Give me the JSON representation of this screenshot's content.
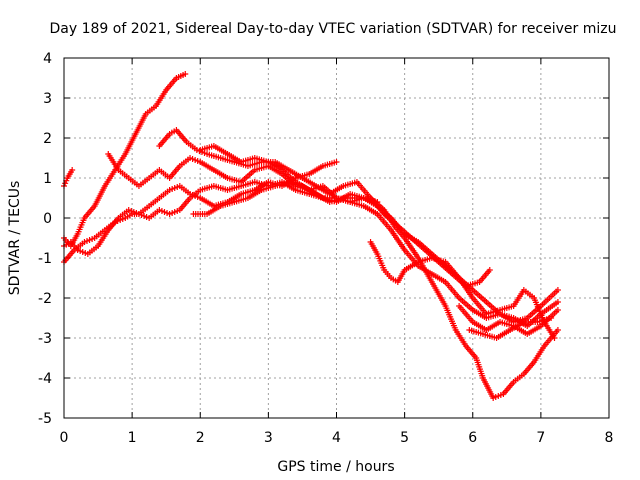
{
  "chart_data": {
    "type": "scatter",
    "title": "Day 189 of 2021, Sidereal Day-to-day VTEC variation (SDTVAR) for receiver mizu",
    "xlabel": "GPS time / hours",
    "ylabel": "SDTVAR / TECUs",
    "xlim": [
      0,
      8
    ],
    "ylim": [
      -5,
      4
    ],
    "xticks": [
      0,
      1,
      2,
      3,
      4,
      5,
      6,
      7,
      8
    ],
    "yticks": [
      -5,
      -4,
      -3,
      -2,
      -1,
      0,
      1,
      2,
      3,
      4
    ],
    "grid": true,
    "marker": "+",
    "color": "#ff0000",
    "series": [
      {
        "points": [
          [
            0,
            -0.5
          ],
          [
            0.1,
            -0.7
          ],
          [
            0.2,
            -0.4
          ],
          [
            0.3,
            0.0
          ],
          [
            0.45,
            0.3
          ],
          [
            0.6,
            0.8
          ],
          [
            0.75,
            1.2
          ],
          [
            0.9,
            1.6
          ],
          [
            1.05,
            2.1
          ],
          [
            1.2,
            2.6
          ],
          [
            1.35,
            2.8
          ],
          [
            1.5,
            3.2
          ],
          [
            1.65,
            3.5
          ],
          [
            1.78,
            3.6
          ]
        ]
      },
      {
        "points": [
          [
            0.0,
            0.8
          ],
          [
            0.05,
            1.0
          ],
          [
            0.12,
            1.2
          ]
        ]
      },
      {
        "points": [
          [
            0.0,
            -1.1
          ],
          [
            0.15,
            -0.8
          ],
          [
            0.3,
            -0.6
          ],
          [
            0.45,
            -0.5
          ],
          [
            0.6,
            -0.3
          ],
          [
            0.75,
            -0.1
          ],
          [
            0.9,
            0.0
          ],
          [
            1.0,
            0.1
          ],
          [
            1.1,
            0.1
          ],
          [
            1.25,
            0.0
          ],
          [
            1.4,
            0.2
          ],
          [
            1.55,
            0.1
          ],
          [
            1.7,
            0.2
          ],
          [
            1.85,
            0.5
          ],
          [
            2.0,
            0.7
          ],
          [
            2.2,
            0.8
          ],
          [
            2.4,
            0.7
          ],
          [
            2.6,
            0.8
          ],
          [
            2.8,
            0.9
          ],
          [
            3.0,
            0.8
          ],
          [
            3.2,
            0.9
          ],
          [
            3.4,
            0.7
          ],
          [
            3.6,
            0.6
          ],
          [
            3.8,
            0.5
          ],
          [
            4.0,
            0.5
          ],
          [
            4.2,
            0.4
          ],
          [
            4.4,
            0.5
          ],
          [
            4.6,
            0.4
          ]
        ]
      },
      {
        "points": [
          [
            0.0,
            -0.7
          ],
          [
            0.1,
            -0.6
          ],
          [
            0.2,
            -0.8
          ],
          [
            0.35,
            -0.9
          ],
          [
            0.5,
            -0.7
          ],
          [
            0.65,
            -0.3
          ],
          [
            0.8,
            0.0
          ],
          [
            0.95,
            0.2
          ],
          [
            1.1,
            0.1
          ],
          [
            1.25,
            0.3
          ],
          [
            1.4,
            0.5
          ],
          [
            1.55,
            0.7
          ],
          [
            1.7,
            0.8
          ],
          [
            1.85,
            0.6
          ],
          [
            2.0,
            0.5
          ],
          [
            2.2,
            0.3
          ],
          [
            2.4,
            0.4
          ],
          [
            2.6,
            0.6
          ],
          [
            2.8,
            0.7
          ],
          [
            3.0,
            0.9
          ],
          [
            3.2,
            0.8
          ],
          [
            3.4,
            1.0
          ],
          [
            3.6,
            1.1
          ],
          [
            3.8,
            1.3
          ],
          [
            4.0,
            1.4
          ]
        ]
      },
      {
        "points": [
          [
            0.65,
            1.6
          ],
          [
            0.8,
            1.2
          ],
          [
            0.95,
            1.0
          ],
          [
            1.1,
            0.8
          ],
          [
            1.25,
            1.0
          ],
          [
            1.4,
            1.2
          ],
          [
            1.55,
            1.0
          ],
          [
            1.7,
            1.3
          ],
          [
            1.85,
            1.5
          ],
          [
            2.0,
            1.4
          ],
          [
            2.2,
            1.2
          ],
          [
            2.4,
            1.0
          ],
          [
            2.6,
            0.9
          ],
          [
            2.8,
            1.2
          ],
          [
            3.0,
            1.3
          ],
          [
            3.2,
            1.1
          ],
          [
            3.4,
            0.8
          ],
          [
            3.6,
            0.7
          ],
          [
            3.8,
            0.5
          ],
          [
            4.0,
            0.4
          ],
          [
            4.2,
            0.6
          ],
          [
            4.4,
            0.5
          ],
          [
            4.6,
            0.3
          ],
          [
            4.8,
            0.0
          ],
          [
            5.0,
            -0.4
          ],
          [
            5.2,
            -0.6
          ],
          [
            5.4,
            -0.9
          ],
          [
            5.6,
            -1.2
          ],
          [
            5.8,
            -1.5
          ],
          [
            6.0,
            -1.8
          ],
          [
            6.2,
            -2.1
          ],
          [
            6.4,
            -2.4
          ],
          [
            6.6,
            -2.6
          ],
          [
            6.8,
            -2.5
          ],
          [
            7.0,
            -2.2
          ],
          [
            7.25,
            -1.8
          ]
        ]
      },
      {
        "points": [
          [
            1.4,
            1.8
          ],
          [
            1.55,
            2.1
          ],
          [
            1.65,
            2.2
          ],
          [
            1.8,
            1.9
          ],
          [
            1.95,
            1.7
          ],
          [
            2.1,
            1.6
          ],
          [
            2.3,
            1.5
          ],
          [
            2.5,
            1.4
          ],
          [
            2.7,
            1.3
          ],
          [
            2.9,
            1.4
          ],
          [
            3.1,
            1.4
          ],
          [
            3.3,
            1.2
          ],
          [
            3.5,
            1.0
          ],
          [
            3.7,
            0.8
          ],
          [
            3.9,
            0.6
          ],
          [
            4.1,
            0.8
          ],
          [
            4.3,
            0.9
          ],
          [
            4.5,
            0.5
          ],
          [
            4.7,
            0.1
          ],
          [
            4.9,
            -0.2
          ],
          [
            5.1,
            -0.5
          ],
          [
            5.3,
            -0.8
          ],
          [
            5.5,
            -1.1
          ],
          [
            5.7,
            -1.4
          ],
          [
            5.9,
            -1.7
          ],
          [
            6.1,
            -1.6
          ],
          [
            6.25,
            -1.3
          ]
        ]
      },
      {
        "points": [
          [
            1.9,
            0.1
          ],
          [
            2.1,
            0.1
          ],
          [
            2.3,
            0.3
          ],
          [
            2.5,
            0.4
          ],
          [
            2.7,
            0.5
          ],
          [
            2.9,
            0.7
          ],
          [
            3.1,
            0.8
          ],
          [
            3.3,
            0.9
          ],
          [
            3.5,
            0.8
          ],
          [
            3.7,
            0.6
          ],
          [
            3.9,
            0.4
          ],
          [
            4.1,
            0.5
          ],
          [
            4.3,
            0.5
          ],
          [
            4.5,
            0.5
          ],
          [
            4.7,
            0.2
          ],
          [
            4.85,
            -0.2
          ],
          [
            5.0,
            -0.5
          ],
          [
            5.2,
            -1.0
          ],
          [
            5.4,
            -1.6
          ],
          [
            5.6,
            -2.2
          ],
          [
            5.75,
            -2.8
          ],
          [
            5.9,
            -3.2
          ],
          [
            6.05,
            -3.5
          ],
          [
            6.15,
            -4.0
          ],
          [
            6.3,
            -4.5
          ],
          [
            6.45,
            -4.4
          ],
          [
            6.6,
            -4.1
          ],
          [
            6.75,
            -3.9
          ],
          [
            6.9,
            -3.6
          ],
          [
            7.05,
            -3.2
          ],
          [
            7.25,
            -2.8
          ]
        ]
      },
      {
        "points": [
          [
            2.0,
            1.7
          ],
          [
            2.2,
            1.8
          ],
          [
            2.4,
            1.6
          ],
          [
            2.6,
            1.4
          ],
          [
            2.8,
            1.5
          ],
          [
            3.0,
            1.4
          ],
          [
            3.2,
            1.2
          ],
          [
            3.4,
            0.9
          ],
          [
            3.6,
            0.7
          ],
          [
            3.8,
            0.8
          ],
          [
            4.0,
            0.5
          ],
          [
            4.2,
            0.4
          ],
          [
            4.4,
            0.3
          ],
          [
            4.6,
            0.1
          ],
          [
            4.8,
            -0.3
          ],
          [
            5.0,
            -0.8
          ],
          [
            5.2,
            -1.2
          ],
          [
            5.4,
            -1.4
          ],
          [
            5.6,
            -1.6
          ],
          [
            5.8,
            -2.0
          ],
          [
            6.0,
            -2.3
          ],
          [
            6.2,
            -2.5
          ],
          [
            6.4,
            -2.4
          ],
          [
            6.6,
            -2.5
          ],
          [
            6.8,
            -2.7
          ],
          [
            7.0,
            -2.4
          ],
          [
            7.25,
            -2.1
          ]
        ]
      },
      {
        "points": [
          [
            4.5,
            -0.6
          ],
          [
            4.6,
            -0.9
          ],
          [
            4.7,
            -1.3
          ],
          [
            4.8,
            -1.5
          ],
          [
            4.9,
            -1.6
          ],
          [
            5.0,
            -1.3
          ],
          [
            5.2,
            -1.1
          ],
          [
            5.4,
            -1.0
          ],
          [
            5.6,
            -1.1
          ],
          [
            5.8,
            -1.5
          ],
          [
            6.0,
            -2.0
          ],
          [
            6.2,
            -2.4
          ],
          [
            6.4,
            -2.3
          ],
          [
            6.6,
            -2.2
          ],
          [
            6.75,
            -1.8
          ],
          [
            6.9,
            -2.0
          ],
          [
            7.05,
            -2.6
          ],
          [
            7.2,
            -3.0
          ]
        ]
      },
      {
        "points": [
          [
            5.8,
            -2.2
          ],
          [
            6.0,
            -2.6
          ],
          [
            6.2,
            -2.8
          ],
          [
            6.4,
            -2.6
          ],
          [
            6.6,
            -2.7
          ],
          [
            6.8,
            -2.9
          ],
          [
            7.0,
            -2.7
          ],
          [
            7.25,
            -2.3
          ]
        ]
      },
      {
        "points": [
          [
            5.95,
            -2.8
          ],
          [
            6.15,
            -2.9
          ],
          [
            6.35,
            -3.0
          ],
          [
            6.55,
            -2.8
          ],
          [
            6.75,
            -2.6
          ],
          [
            6.95,
            -2.6
          ],
          [
            7.15,
            -2.5
          ]
        ]
      }
    ]
  }
}
